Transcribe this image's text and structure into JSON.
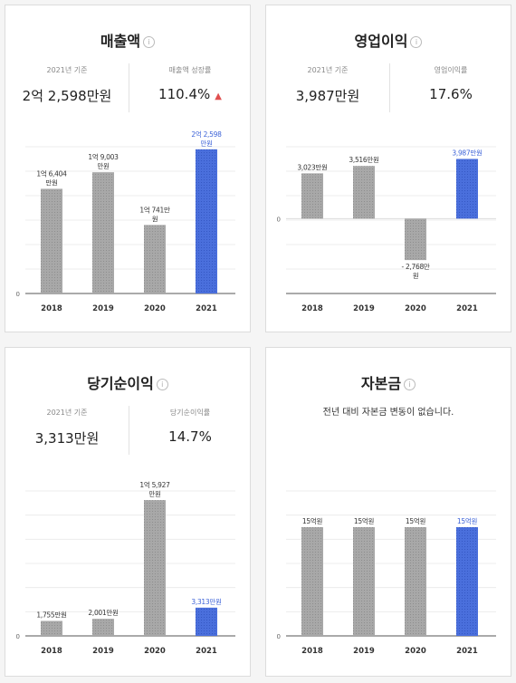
{
  "colors": {
    "bar_past": "#a8a8a8",
    "bar_current": "#4a6fdc",
    "label_current": "#3d63d8",
    "up_arrow": "#e04f4f"
  },
  "icons": {
    "info": "info-icon",
    "up": "triangle-up-icon"
  },
  "revenue": {
    "title": "매출액",
    "stat1": {
      "label": "2021년 기준",
      "value": "2억 2,598만원"
    },
    "stat2": {
      "label": "매출액 성장률",
      "value": "110.4%",
      "arrow": "▲"
    }
  },
  "operating": {
    "title": "영업이익",
    "stat1": {
      "label": "2021년 기준",
      "value": "3,987만원"
    },
    "stat2": {
      "label": "영업이익률",
      "value": "17.6%"
    }
  },
  "net": {
    "title": "당기순이익",
    "stat1": {
      "label": "2021년 기준",
      "value": "3,313만원"
    },
    "stat2": {
      "label": "당기순이익률",
      "value": "14.7%"
    }
  },
  "capital": {
    "title": "자본금",
    "message": "전년 대비 자본금 변동이 없습니다."
  },
  "chart_data": [
    {
      "id": "revenue",
      "type": "bar",
      "categories": [
        "2018",
        "2019",
        "2020",
        "2021"
      ],
      "values": [
        16404,
        19003,
        10741,
        22598
      ],
      "ylim": [
        0,
        23000
      ],
      "zero_label": "0",
      "data_labels": [
        [
          "1억 6,404",
          "만원"
        ],
        [
          "1억 9,003",
          "만원"
        ],
        [
          "1억 741만",
          "원"
        ],
        [
          "2억 2,598",
          "만원"
        ]
      ],
      "grid": true
    },
    {
      "id": "operating",
      "type": "bar",
      "categories": [
        "2018",
        "2019",
        "2020",
        "2021"
      ],
      "values": [
        3023,
        3516,
        -2768,
        3987
      ],
      "ylim": [
        -5000,
        4800
      ],
      "zero_label": "0",
      "data_labels": [
        [
          "3,023만원"
        ],
        [
          "3,516만원"
        ],
        [
          "- 2,768만",
          "원"
        ],
        [
          "3,987만원"
        ]
      ],
      "grid": true
    },
    {
      "id": "net",
      "type": "bar",
      "categories": [
        "2018",
        "2019",
        "2020",
        "2021"
      ],
      "values": [
        1755,
        2001,
        15927,
        3313
      ],
      "ylim": [
        0,
        17000
      ],
      "zero_label": "0",
      "data_labels": [
        [
          "1,755만원"
        ],
        [
          "2,001만원"
        ],
        [
          "1억 5,927",
          "만원"
        ],
        [
          "3,313만원"
        ]
      ],
      "grid": true
    },
    {
      "id": "capital",
      "type": "bar",
      "categories": [
        "2018",
        "2019",
        "2020",
        "2021"
      ],
      "values": [
        15,
        15,
        15,
        15
      ],
      "ylim": [
        0,
        20
      ],
      "zero_label": "0",
      "data_labels": [
        [
          "15억원"
        ],
        [
          "15억원"
        ],
        [
          "15억원"
        ],
        [
          "15억원"
        ]
      ],
      "grid": true
    }
  ]
}
